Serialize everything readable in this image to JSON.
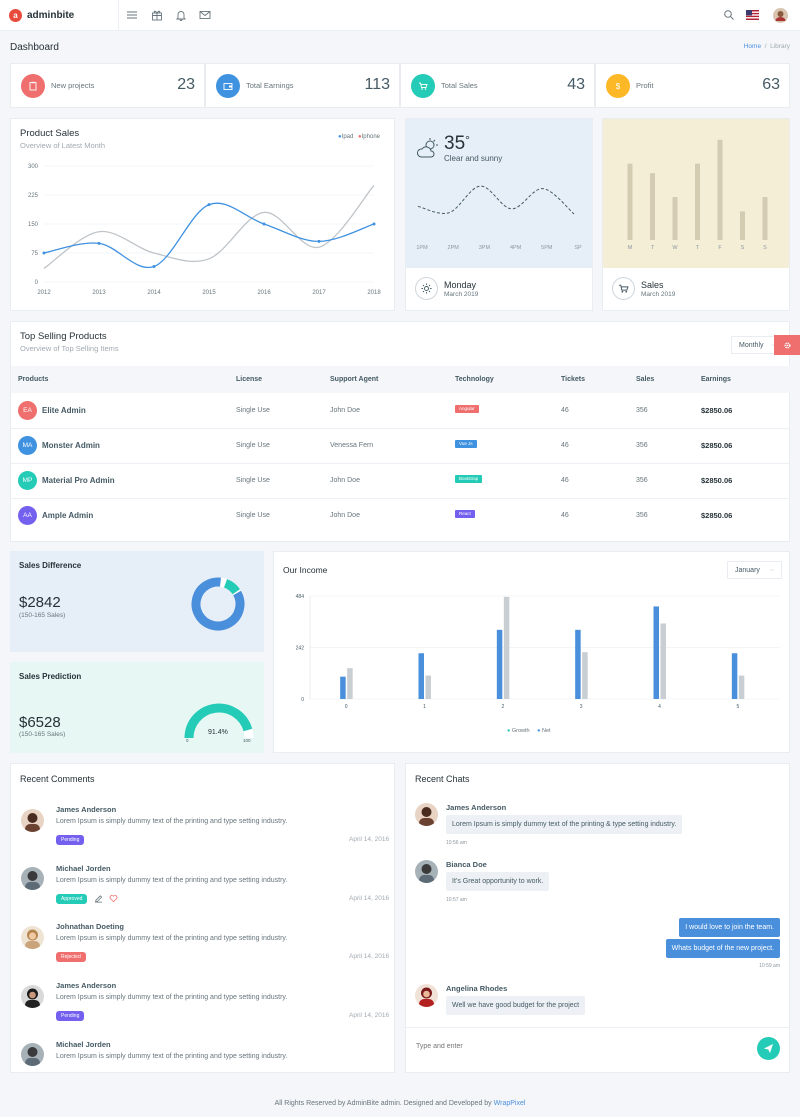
{
  "brand": {
    "name": "adminbite",
    "mark": "a"
  },
  "colors": {
    "red": "#ef6e6e",
    "blue": "#3f92e0",
    "green": "#24cbb6",
    "yellow": "#fcb826",
    "purple": "#7460ee"
  },
  "header": {
    "title": "Dashboard",
    "breadcrumb": [
      "Home",
      "Library"
    ]
  },
  "stats": [
    {
      "label": "New projects",
      "value": "23",
      "icon": "clipboard-icon"
    },
    {
      "label": "Total Earnings",
      "value": "113",
      "icon": "wallet-icon"
    },
    {
      "label": "Total Sales",
      "value": "43",
      "icon": "cart-icon"
    },
    {
      "label": "Profit",
      "value": "63",
      "icon": "dollar-icon"
    }
  ],
  "product_sales": {
    "title": "Product Sales",
    "subtitle": "Overview of Latest Month",
    "legend": [
      "Ipad",
      "Iphone"
    ]
  },
  "weather": {
    "temp": "35",
    "unit": "°",
    "condition": "Clear and sunny",
    "times": [
      "1PM",
      "2PM",
      "3PM",
      "4PM",
      "5PM",
      "SP"
    ],
    "day": "Monday",
    "date": "March 2019"
  },
  "sales_card": {
    "days": [
      "M",
      "T",
      "W",
      "T",
      "F",
      "S",
      "S"
    ],
    "title": "Sales",
    "date": "March 2019"
  },
  "top_selling": {
    "title": "Top Selling Products",
    "subtitle": "Overview of Top Selling Items",
    "filter": "Monthly",
    "columns": [
      "Products",
      "License",
      "Support Agent",
      "Technology",
      "Tickets",
      "Sales",
      "Earnings"
    ],
    "rows": [
      {
        "initials": "EA",
        "name": "Elite Admin",
        "license": "Single Use",
        "agent": "John Doe",
        "tech": "Angular",
        "tickets": "46",
        "sales": "356",
        "earnings": "$2850.06"
      },
      {
        "initials": "MA",
        "name": "Monster Admin",
        "license": "Single Use",
        "agent": "Venessa Fern",
        "tech": "Vue Js",
        "tickets": "46",
        "sales": "356",
        "earnings": "$2850.06"
      },
      {
        "initials": "MP",
        "name": "Material Pro Admin",
        "license": "Single Use",
        "agent": "John Doe",
        "tech": "Bootstrap",
        "tickets": "46",
        "sales": "356",
        "earnings": "$2850.06"
      },
      {
        "initials": "AA",
        "name": "Ample Admin",
        "license": "Single Use",
        "agent": "John Doe",
        "tech": "React",
        "tickets": "46",
        "sales": "356",
        "earnings": "$2850.06"
      }
    ]
  },
  "sales_difference": {
    "title": "Sales Difference",
    "value": "$2842",
    "sub": "(150-165 Sales)",
    "donut_fraction": 0.85
  },
  "sales_prediction": {
    "title": "Sales Prediction",
    "value": "$6528",
    "sub": "(150-165 Sales)",
    "gauge": "91.4%",
    "gauge_fraction": 0.914,
    "gauge_min": "0",
    "gauge_max": "100"
  },
  "income": {
    "title": "Our Income",
    "filter": "January",
    "legend": [
      "Growth",
      "Net"
    ]
  },
  "chart_data": [
    {
      "type": "line",
      "title": "Product Sales",
      "x": [
        2012,
        2013,
        2014,
        2015,
        2016,
        2017,
        2018
      ],
      "series": [
        {
          "name": "Ipad",
          "values": [
            75,
            100,
            40,
            200,
            150,
            105,
            150
          ]
        },
        {
          "name": "Iphone",
          "values": [
            35,
            130,
            75,
            60,
            180,
            90,
            250
          ]
        }
      ],
      "ylim": [
        0,
        300
      ],
      "yticks": [
        0,
        75,
        150,
        225,
        300
      ]
    },
    {
      "type": "line",
      "title": "Weather",
      "categories": [
        "1PM",
        "2PM",
        "3PM",
        "4PM",
        "5PM",
        "SP"
      ],
      "series": [
        {
          "name": "Temperature",
          "values": [
            10,
            5,
            26,
            8,
            24,
            4
          ]
        }
      ],
      "ylim": [
        0,
        30
      ]
    },
    {
      "type": "bar",
      "title": "Sales",
      "categories": [
        "M",
        "T",
        "W",
        "T",
        "F",
        "S",
        "S"
      ],
      "values": [
        80,
        70,
        45,
        80,
        105,
        30,
        45
      ],
      "ylim": [
        0,
        110
      ]
    },
    {
      "type": "bar",
      "title": "Our Income",
      "categories": [
        "0",
        "1",
        "2",
        "3",
        "4",
        "5"
      ],
      "series": [
        {
          "name": "Growth",
          "values": [
            105,
            215,
            325,
            325,
            435,
            215
          ]
        },
        {
          "name": "Net",
          "values": [
            145,
            110,
            480,
            220,
            355,
            110
          ]
        }
      ],
      "ylim": [
        0,
        484
      ],
      "yticks": [
        0,
        242,
        484
      ]
    }
  ],
  "recent_comments": {
    "title": "Recent Comments",
    "items": [
      {
        "name": "James Anderson",
        "text": "Lorem Ipsum is simply dummy text of the printing and type setting industry.",
        "badge": "Pending",
        "date": "April 14, 2016"
      },
      {
        "name": "Michael Jorden",
        "text": "Lorem Ipsum is simply dummy text of the printing and type setting industry.",
        "badge": "Approved",
        "date": "April 14, 2016"
      },
      {
        "name": "Johnathan Doeting",
        "text": "Lorem Ipsum is simply dummy text of the printing and type setting industry.",
        "badge": "Rejected",
        "date": "April 14, 2016"
      },
      {
        "name": "James Anderson",
        "text": "Lorem Ipsum is simply dummy text of the printing and type setting industry.",
        "badge": "Pending",
        "date": "April 14, 2016"
      },
      {
        "name": "Michael Jorden",
        "text": "Lorem Ipsum is simply dummy text of the printing and type setting industry."
      }
    ]
  },
  "recent_chats": {
    "title": "Recent Chats",
    "messages": [
      {
        "name": "James Anderson",
        "text": "Lorem Ipsum is simply dummy text of the printing & type setting industry.",
        "time": "10:56 am"
      },
      {
        "name": "Bianca Doe",
        "text": "It’s Great opportunity to work.",
        "time": "10:57 am"
      },
      {
        "text": "I would love to join the team."
      },
      {
        "text": "Whats budget of the new project.",
        "time": "10:59 am"
      },
      {
        "name": "Angelina Rhodes",
        "text": "Well we have good budget for the project"
      }
    ],
    "input_placeholder": "Type and enter"
  },
  "footer": {
    "text": "All Rights Reserved by AdminBite admin. Designed and Developed by",
    "link": "WrapPixel"
  }
}
